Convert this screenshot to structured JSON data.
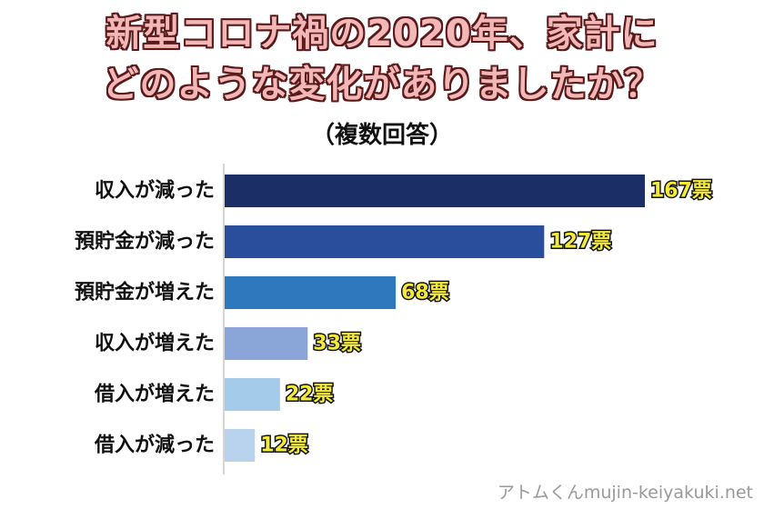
{
  "title_line1": "新型コロナ禍の2020年、家計に",
  "title_line2": "どのような変化がありましたか？",
  "subtitle": "（複数回答）",
  "credit": "アトムくんmujin-keiyakuki.net",
  "chart_data": {
    "type": "bar",
    "orientation": "horizontal",
    "categories": [
      "収入が減った",
      "預貯金が減った",
      "預貯金が増えた",
      "収入が増えた",
      "借入が増えた",
      "借入が減った"
    ],
    "values": [
      167,
      127,
      68,
      33,
      22,
      12
    ],
    "value_labels": [
      "167票",
      "127票",
      "68票",
      "33票",
      "22票",
      "12票"
    ],
    "unit": "票",
    "colors": [
      "#1c2e66",
      "#2a4d9c",
      "#2f78be",
      "#8aa6d9",
      "#a4cbea",
      "#b9d2ee"
    ],
    "xlim": [
      0,
      167
    ],
    "grid": false,
    "legend": "none"
  }
}
